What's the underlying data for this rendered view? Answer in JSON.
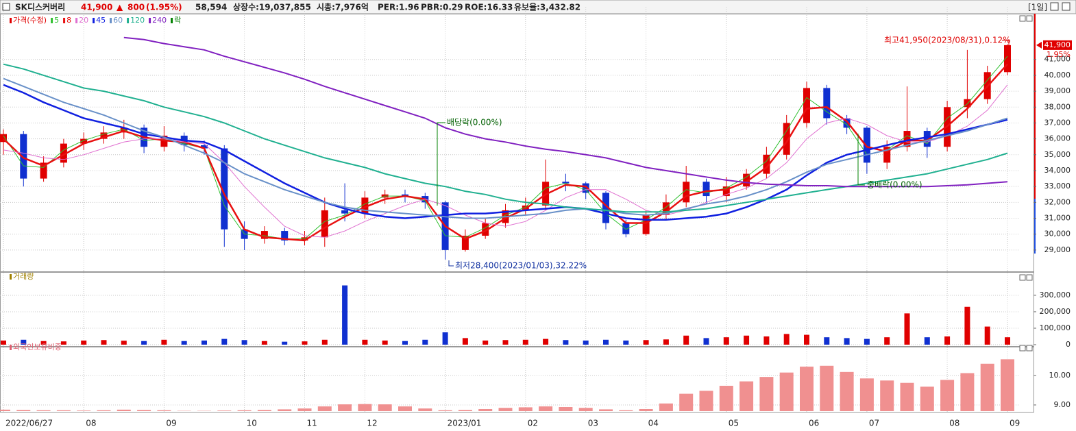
{
  "header": {
    "name": "SK디스커버리",
    "price": "41,900",
    "arrow": "▲",
    "change": "800",
    "change_pct": "(1.95%)",
    "volume": "58,594",
    "listed": "상장수:19,037,855",
    "market_cap": "시총:7,976억",
    "per": "PER:1.96",
    "pbr": "PBR:0.29",
    "roe": "ROE:16.33",
    "reserve": "유보율:3,432.82",
    "period": "[1일]"
  },
  "chart_data": [
    {
      "type": "candlestick",
      "price_name": "가격(수정)",
      "lock_name": "락",
      "lock_color": "#008000",
      "up_color": "#e00000",
      "down_color": "#1030d0",
      "grid": true,
      "last_label": "41,900",
      "last_change": "1.95%",
      "last_value": 41900,
      "annotations": [
        "최고41,950(2023/08/31),0.12%",
        "최저28,400(2023/01/03),32.22%",
        "배당락(0.00%)",
        "중배락(0.00%)"
      ],
      "categories": [
        "2022/06/27",
        null,
        null,
        null,
        "08",
        null,
        null,
        null,
        "09",
        null,
        null,
        null,
        "10",
        null,
        null,
        "11",
        null,
        null,
        "12",
        null,
        null,
        null,
        "2023/01",
        null,
        null,
        null,
        "02",
        null,
        null,
        "03",
        null,
        null,
        "04",
        null,
        null,
        null,
        "05",
        null,
        null,
        null,
        "06",
        null,
        null,
        "07",
        null,
        null,
        null,
        "08",
        null,
        null,
        "09"
      ],
      "open": [
        35800,
        36300,
        33500,
        34500,
        35700,
        36000,
        36400,
        36700,
        35500,
        36200,
        35600,
        35400,
        30300,
        29700,
        30200,
        29600,
        29800,
        31500,
        31300,
        32300,
        32500,
        32400,
        32000,
        29000,
        29900,
        30700,
        31500,
        31800,
        33300,
        33200,
        32600,
        30700,
        30000,
        31200,
        32000,
        33300,
        32400,
        33000,
        33800,
        35000,
        37000,
        39200,
        37300,
        36700,
        34500,
        35500,
        36500,
        35500,
        38000,
        38500,
        40200
      ],
      "high": [
        36600,
        36500,
        34900,
        36000,
        36400,
        36800,
        37200,
        36900,
        36800,
        36400,
        35900,
        35600,
        30800,
        30500,
        30400,
        30200,
        32300,
        33200,
        32700,
        32800,
        32800,
        32600,
        32100,
        30300,
        31000,
        31900,
        32300,
        34700,
        33800,
        33300,
        32700,
        30900,
        31500,
        32500,
        34300,
        33500,
        33600,
        34100,
        35500,
        37500,
        39600,
        39400,
        37500,
        36800,
        35900,
        39300,
        36700,
        38400,
        41600,
        40600,
        41950
      ],
      "low": [
        35000,
        33000,
        33300,
        34200,
        35300,
        35700,
        36000,
        35100,
        35200,
        35200,
        35000,
        29200,
        29000,
        29400,
        29300,
        29300,
        29200,
        30800,
        31000,
        31900,
        32000,
        31600,
        28400,
        28900,
        29700,
        30400,
        31200,
        31500,
        32700,
        32200,
        30300,
        29800,
        29900,
        30900,
        31700,
        31900,
        32000,
        32800,
        33500,
        34700,
        36700,
        36900,
        36300,
        33800,
        34100,
        35200,
        34800,
        35200,
        37300,
        38200,
        40000
      ],
      "close": [
        36300,
        33500,
        34500,
        35700,
        36000,
        36400,
        36700,
        35500,
        36200,
        35600,
        35400,
        30300,
        29700,
        30200,
        29600,
        29800,
        31500,
        31300,
        32300,
        32500,
        32400,
        32000,
        29000,
        29900,
        30700,
        31500,
        31800,
        33300,
        33200,
        32600,
        30700,
        30000,
        31200,
        32000,
        33300,
        32400,
        33000,
        33800,
        35000,
        37000,
        39200,
        37300,
        36700,
        34500,
        35500,
        36500,
        35500,
        38000,
        38500,
        40200,
        41900
      ],
      "series": [
        {
          "name": "5",
          "color": "#30c030",
          "width": 1,
          "values": [
            36200,
            34300,
            34200,
            35300,
            35900,
            36300,
            36600,
            35900,
            36000,
            35700,
            35400,
            31800,
            30000,
            29900,
            29700,
            29700,
            30800,
            31200,
            31900,
            32400,
            32400,
            32100,
            29900,
            29800,
            30400,
            31200,
            31700,
            32900,
            33200,
            32800,
            31300,
            30300,
            30900,
            31700,
            32800,
            32600,
            32900,
            33600,
            34600,
            36500,
            38600,
            37700,
            36900,
            35000,
            35300,
            36200,
            35700,
            37300,
            38200,
            39700,
            41200
          ]
        },
        {
          "name": "8",
          "color": "#e81010",
          "width": 2.5,
          "values": [
            36000,
            34800,
            34300,
            35000,
            35700,
            36100,
            36500,
            36100,
            35900,
            35800,
            35400,
            32500,
            30300,
            29800,
            29700,
            29600,
            30400,
            31100,
            31700,
            32200,
            32400,
            32200,
            30500,
            29700,
            30200,
            31000,
            31600,
            32500,
            33100,
            33000,
            31800,
            30700,
            30700,
            31400,
            32400,
            32700,
            32800,
            33300,
            34200,
            35800,
            37900,
            38000,
            37100,
            35500,
            35200,
            35900,
            35900,
            36800,
            37900,
            39300,
            40700
          ]
        },
        {
          "name": "20",
          "color": "#e070d0",
          "width": 1,
          "values": [
            35300,
            35100,
            34800,
            34700,
            35000,
            35400,
            35800,
            36000,
            36000,
            35800,
            35700,
            34500,
            33000,
            31700,
            30500,
            29900,
            29800,
            30200,
            30800,
            31300,
            31800,
            32200,
            31800,
            31200,
            30700,
            30500,
            30800,
            31500,
            32300,
            32800,
            32800,
            32200,
            31500,
            31200,
            31500,
            32000,
            32500,
            32900,
            33500,
            34500,
            36000,
            37000,
            37300,
            36900,
            36200,
            35800,
            35800,
            36200,
            36800,
            37800,
            39400
          ]
        },
        {
          "name": "45",
          "color": "#1020e0",
          "width": 2.5,
          "values": [
            39400,
            38900,
            38300,
            37800,
            37300,
            37000,
            36700,
            36300,
            36100,
            35900,
            35800,
            35300,
            34600,
            33900,
            33200,
            32600,
            32000,
            31600,
            31300,
            31100,
            31000,
            31100,
            31200,
            31300,
            31300,
            31400,
            31500,
            31600,
            31700,
            31600,
            31300,
            31000,
            30900,
            30900,
            31000,
            31100,
            31300,
            31700,
            32200,
            32800,
            33700,
            34500,
            35000,
            35300,
            35600,
            35900,
            36100,
            36300,
            36600,
            36900,
            37200
          ]
        },
        {
          "name": "60",
          "color": "#6890c8",
          "width": 2,
          "values": [
            39800,
            39300,
            38800,
            38300,
            37900,
            37500,
            37000,
            36500,
            36100,
            35600,
            35100,
            34500,
            33800,
            33300,
            32800,
            32400,
            32000,
            31700,
            31500,
            31400,
            31300,
            31200,
            31100,
            31000,
            31000,
            31100,
            31200,
            31300,
            31500,
            31600,
            31500,
            31300,
            31200,
            31300,
            31600,
            31900,
            32100,
            32400,
            32800,
            33300,
            33900,
            34400,
            34700,
            35000,
            35300,
            35600,
            35900,
            36200,
            36500,
            36900,
            37300
          ]
        },
        {
          "name": "120",
          "color": "#20b090",
          "width": 2,
          "values": [
            40700,
            40400,
            40000,
            39600,
            39200,
            39000,
            38700,
            38400,
            38000,
            37700,
            37400,
            37000,
            36500,
            36000,
            35600,
            35200,
            34800,
            34500,
            34200,
            33800,
            33500,
            33200,
            33000,
            32700,
            32500,
            32200,
            32000,
            31900,
            31700,
            31600,
            31500,
            31400,
            31400,
            31400,
            31500,
            31600,
            31800,
            32000,
            32200,
            32400,
            32600,
            32800,
            33000,
            33200,
            33400,
            33600,
            33800,
            34100,
            34400,
            34700,
            35100
          ]
        },
        {
          "name": "240",
          "color": "#8020c0",
          "width": 2,
          "values": [
            null,
            null,
            null,
            null,
            null,
            null,
            42380,
            42250,
            42000,
            41800,
            41600,
            41200,
            40850,
            40500,
            40150,
            39750,
            39300,
            38900,
            38500,
            38100,
            37700,
            37300,
            36700,
            36300,
            36000,
            35800,
            35550,
            35350,
            35200,
            35000,
            34800,
            34500,
            34200,
            34000,
            33800,
            33600,
            33400,
            33250,
            33150,
            33100,
            33050,
            33050,
            33000,
            33000,
            33000,
            33000,
            33000,
            33050,
            33100,
            33200,
            33300
          ]
        }
      ],
      "ylim": [
        27700,
        43880
      ],
      "yticks": [
        {
          "value": 29000,
          "label": "29,000"
        },
        {
          "value": 30000,
          "label": "30,000"
        },
        {
          "value": 31000,
          "label": "31,000"
        },
        {
          "value": 32000,
          "label": "32,000"
        },
        {
          "value": 33000,
          "label": "33,000"
        },
        {
          "value": 34000,
          "label": "34,000"
        },
        {
          "value": 35000,
          "label": "35,000"
        },
        {
          "value": 36000,
          "label": "36,000"
        },
        {
          "value": 37000,
          "label": "37,000"
        },
        {
          "value": 38000,
          "label": "38,000"
        },
        {
          "value": 39000,
          "label": "39,000"
        },
        {
          "value": 40000,
          "label": "40,000"
        },
        {
          "value": 41000,
          "label": "41,000"
        }
      ]
    },
    {
      "type": "bar",
      "title": "거래량",
      "title_color": "#a08000",
      "values": [
        25000,
        30000,
        22000,
        20000,
        25000,
        28000,
        24000,
        22000,
        30000,
        22000,
        25000,
        35000,
        28000,
        22000,
        18000,
        20000,
        30000,
        360000,
        30000,
        25000,
        22000,
        30000,
        75000,
        40000,
        25000,
        28000,
        30000,
        35000,
        28000,
        25000,
        30000,
        25000,
        28000,
        32000,
        55000,
        40000,
        45000,
        55000,
        50000,
        65000,
        60000,
        45000,
        40000,
        35000,
        45000,
        190000,
        45000,
        50000,
        230000,
        110000,
        45000
      ],
      "ylim": [
        0,
        408000
      ],
      "yticks": [
        0,
        {
          "value": 100000,
          "label": "100,000"
        },
        {
          "value": 200000,
          "label": "200,000"
        },
        {
          "value": 300000,
          "label": "300,000"
        }
      ],
      "grid": true
    },
    {
      "type": "bar",
      "title": "외국인보유비중",
      "title_color": "#e06070",
      "color": "#f09090",
      "values": [
        8.84,
        8.83,
        8.82,
        8.82,
        8.81,
        8.82,
        8.84,
        8.83,
        8.82,
        8.8,
        8.8,
        8.81,
        8.82,
        8.83,
        8.85,
        8.88,
        8.95,
        9.02,
        9.03,
        9.02,
        8.95,
        8.88,
        8.82,
        8.83,
        8.86,
        8.9,
        8.92,
        8.95,
        8.93,
        8.9,
        8.85,
        8.82,
        8.86,
        9.05,
        9.38,
        9.48,
        9.65,
        9.8,
        9.95,
        10.1,
        10.3,
        10.33,
        10.12,
        9.9,
        9.83,
        9.75,
        9.62,
        9.85,
        10.08,
        10.4,
        10.55
      ],
      "ylim": [
        8.79,
        10.93
      ],
      "yticks": [
        {
          "value": 9,
          "label": "9.00"
        },
        {
          "value": 10,
          "label": "10.00"
        }
      ],
      "grid": true
    }
  ]
}
